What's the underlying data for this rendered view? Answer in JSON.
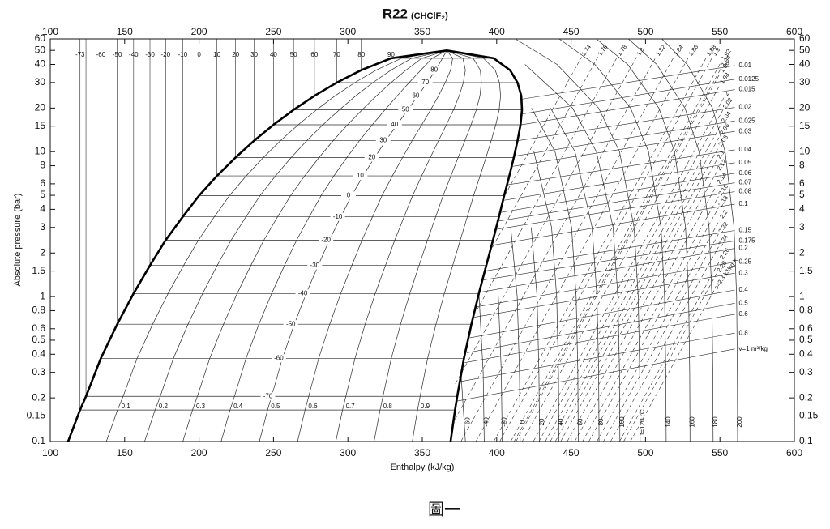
{
  "chart_data": {
    "type": "line",
    "title": "R22",
    "subtitle": "(CHClF₂)",
    "x_label": "Enthalpy (kJ/kg)",
    "y_label": "Absolute pressure (bar)",
    "caption": "圖一",
    "xlim": [
      100,
      600
    ],
    "xticks": [
      100,
      150,
      200,
      250,
      300,
      350,
      400,
      450,
      500,
      550,
      600
    ],
    "ylim": [
      0.1,
      60
    ],
    "yticks": [
      0.1,
      0.15,
      0.2,
      0.3,
      0.4,
      0.5,
      0.6,
      0.8,
      1,
      1.5,
      2,
      3,
      4,
      5,
      6,
      8,
      10,
      15,
      20,
      30,
      40,
      50,
      60
    ],
    "y_log": true,
    "dome_color": "#000000",
    "line_color": "#2a2a2a",
    "saturation": {
      "t": [
        null,
        -73,
        -70,
        -60,
        -50,
        -40,
        -30,
        -20,
        -10,
        0,
        10,
        20,
        30,
        40,
        50,
        60,
        70,
        80,
        90
      ],
      "p": [
        0.1,
        0.165,
        0.205,
        0.375,
        0.645,
        1.05,
        1.64,
        2.45,
        3.55,
        4.98,
        6.81,
        9.1,
        11.92,
        15.34,
        19.43,
        24.27,
        29.93,
        36.5,
        44.1
      ],
      "hl": [
        112,
        120,
        124,
        134,
        145,
        156,
        167,
        177.5,
        189,
        200,
        212,
        224.5,
        237,
        250,
        263.5,
        277.5,
        292.5,
        309,
        329
      ],
      "hv": [
        369,
        372,
        373.5,
        378,
        383,
        388,
        393,
        397.5,
        401.5,
        405,
        408.5,
        411.5,
        414,
        416,
        417,
        416.5,
        414,
        409,
        398
      ]
    },
    "critical": {
      "p": 49.9,
      "h": 366.5
    },
    "quality": [
      0.1,
      0.2,
      0.3,
      0.4,
      0.5,
      0.6,
      0.7,
      0.8,
      0.9
    ],
    "superheat": {
      "p": [
        0.1,
        0.3,
        1,
        3,
        10,
        20,
        40,
        60
      ],
      "isotherms": [
        {
          "t": -60,
          "h": [
            379,
            376,
            null,
            null,
            null,
            null,
            null,
            null
          ]
        },
        {
          "t": -40,
          "h": [
            391.6,
            390.9,
            388.2,
            null,
            null,
            null,
            null,
            null
          ]
        },
        {
          "t": -20,
          "h": [
            403.7,
            403.1,
            401.1,
            null,
            null,
            null,
            null,
            null
          ]
        },
        {
          "t": 0,
          "h": [
            415.8,
            415.3,
            413.8,
            409.4,
            null,
            null,
            null,
            null
          ]
        },
        {
          "t": 20,
          "h": [
            428.8,
            428.4,
            427.1,
            423.2,
            null,
            null,
            null,
            null
          ]
        },
        {
          "t": 40,
          "h": [
            441.8,
            441.5,
            440.3,
            436.9,
            425,
            null,
            null,
            null
          ]
        },
        {
          "t": 60,
          "h": [
            454.8,
            454.5,
            453.4,
            450.3,
            439.2,
            423.4,
            null,
            null
          ]
        },
        {
          "t": 80,
          "h": [
            468.8,
            468.5,
            467.4,
            464.1,
            452.6,
            436.2,
            null,
            null
          ]
        },
        {
          "t": 100,
          "h": [
            482.8,
            482.5,
            481.4,
            478.2,
            467,
            451,
            419,
            null
          ]
        },
        {
          "t": {
            "value": 120,
            "label": "t=120 °C"
          },
          "h": [
            496.4,
            496.1,
            495.1,
            492.3,
            482.5,
            468.5,
            440.5,
            412.5
          ]
        },
        {
          "t": 140,
          "h": [
            513.9,
            513.6,
            512.8,
            510.4,
            502,
            490,
            466,
            442
          ]
        },
        {
          "t": 160,
          "h": [
            529.9,
            529.7,
            529,
            526.9,
            519.5,
            509,
            488,
            467
          ]
        },
        {
          "t": 180,
          "h": [
            545.4,
            545.2,
            544.6,
            542.7,
            536,
            526.5,
            507.5,
            488.5
          ]
        },
        {
          "t": 200,
          "h": [
            561.9,
            561.7,
            561.2,
            559.5,
            553.5,
            545,
            528,
            511
          ]
        }
      ]
    },
    "isentropes": [
      {
        "s": 1.74,
        "p": [
          5,
          45
        ],
        "h": [
          405.5,
          457
        ]
      },
      {
        "s": 1.76,
        "p": [
          2,
          45
        ],
        "h": [
          395,
          468
        ]
      },
      {
        "s": 1.78,
        "p": [
          0.8,
          45
        ],
        "h": [
          386.5,
          481
        ]
      },
      {
        "s": 1.8,
        "p": [
          0.25,
          45
        ],
        "h": [
          372.2,
          494
        ]
      },
      {
        "s": 1.82,
        "p": [
          0.13,
          45
        ],
        "h": [
          369.9,
          507
        ]
      },
      {
        "s": 1.84,
        "p": [
          0.1,
          45
        ],
        "h": [
          376,
          519
        ]
      },
      {
        "s": 1.86,
        "p": [
          0.1,
          45
        ],
        "h": [
          386,
          529
        ]
      },
      {
        "s": 1.88,
        "p": [
          0.1,
          45
        ],
        "h": [
          398,
          541
        ]
      },
      {
        "s": 1.9,
        "p": [
          0.1,
          45
        ],
        "h": [
          402,
          545
        ]
      },
      {
        "s": 1.92,
        "p": [
          0.1,
          42
        ],
        "h": [
          409.4,
          551
        ]
      },
      {
        "s": 1.94,
        "p": [
          0.1,
          38
        ],
        "h": [
          411.7,
          551
        ]
      },
      {
        "s": 1.96,
        "p": [
          0.1,
          34.6
        ],
        "h": [
          412.9,
          550
        ]
      },
      {
        "s": 1.98,
        "p": [
          0.1,
          28.9
        ],
        "h": [
          417.1,
          550
        ]
      },
      {
        "s": 2,
        "p": [
          0.1,
          23.9
        ],
        "h": [
          424.6,
          553
        ]
      },
      {
        "s": 2.02,
        "p": [
          0.1,
          19.4
        ],
        "h": [
          428.4,
          552
        ]
      },
      {
        "s": 2.04,
        "p": [
          0.1,
          15.6
        ],
        "h": [
          432.6,
          551
        ]
      },
      {
        "s": 2.06,
        "p": [
          0.1,
          12.9
        ],
        "h": [
          436,
          550
        ]
      },
      {
        "s": 2.08,
        "p": [
          0.1,
          10.7
        ],
        "h": [
          439.4,
          549
        ]
      },
      {
        "s": 2.1,
        "p": [
          0.1,
          8.8
        ],
        "h": [
          443,
          548
        ]
      },
      {
        "s": 2.12,
        "p": [
          0.1,
          7.3
        ],
        "h": [
          447.4,
          548
        ]
      },
      {
        "s": 2.14,
        "p": [
          0.1,
          5.9
        ],
        "h": [
          452.4,
          548
        ]
      },
      {
        "s": 2.16,
        "p": [
          0.1,
          4.9
        ],
        "h": [
          457.7,
          549
        ]
      },
      {
        "s": 2.18,
        "p": [
          0.1,
          4.1
        ],
        "h": [
          461.9,
          549
        ]
      },
      {
        "s": 2.2,
        "p": [
          0.1,
          3.4
        ],
        "h": [
          467.3,
          550
        ]
      },
      {
        "s": 2.22,
        "p": [
          0.1,
          2.7
        ],
        "h": [
          471.7,
          549
        ]
      },
      {
        "s": 2.24,
        "p": [
          0.1,
          2.2
        ],
        "h": [
          476.5,
          549
        ]
      },
      {
        "s": 2.26,
        "p": [
          0.1,
          1.78
        ],
        "h": [
          482.5,
          550
        ]
      },
      {
        "s": 2.28,
        "p": [
          0.1,
          1.45
        ],
        "h": [
          485.3,
          548
        ]
      },
      {
        "s": {
          "value": 2.3,
          "label": "s=2.3 kJ/kg K"
        },
        "p": [
          0.1,
          1.1
        ],
        "h": [
          489.8,
          546
        ]
      }
    ],
    "isochores": [
      {
        "v": 0.01,
        "p": [
          23,
          39.3
        ],
        "h": [
          416.5,
          560
        ]
      },
      {
        "v": 0.0125,
        "p": [
          18.2,
          31.6
        ],
        "h": [
          417,
          560
        ]
      },
      {
        "v": 0.015,
        "p": [
          15.3,
          26.8
        ],
        "h": [
          416,
          560
        ]
      },
      {
        "v": 0.02,
        "p": [
          11.9,
          20.2
        ],
        "h": [
          414,
          560
        ]
      },
      {
        "v": 0.025,
        "p": [
          9.3,
          16.3
        ],
        "h": [
          411.7,
          560
        ]
      },
      {
        "v": 0.03,
        "p": [
          7.9,
          13.8
        ],
        "h": [
          410,
          560
        ]
      },
      {
        "v": 0.04,
        "p": [
          5.9,
          10.3
        ],
        "h": [
          407,
          560
        ]
      },
      {
        "v": 0.05,
        "p": [
          4.6,
          8.4
        ],
        "h": [
          404,
          560
        ]
      },
      {
        "v": 0.06,
        "p": [
          3.8,
          7.1
        ],
        "h": [
          402,
          560
        ]
      },
      {
        "v": 0.07,
        "p": [
          3.3,
          6.1
        ],
        "h": [
          400,
          560
        ]
      },
      {
        "v": 0.08,
        "p": [
          2.9,
          5.3
        ],
        "h": [
          398.5,
          560
        ]
      },
      {
        "v": 0.1,
        "p": [
          2.25,
          4.35
        ],
        "h": [
          396,
          560
        ]
      },
      {
        "v": 0.15,
        "p": [
          1.5,
          2.86
        ],
        "h": [
          392,
          560
        ]
      },
      {
        "v": 0.175,
        "p": [
          1.3,
          2.42
        ],
        "h": [
          390.5,
          560
        ]
      },
      {
        "v": 0.2,
        "p": [
          1.07,
          2.15
        ],
        "h": [
          388.5,
          560
        ]
      },
      {
        "v": 0.25,
        "p": [
          0.85,
          1.73
        ],
        "h": [
          386.5,
          560
        ]
      },
      {
        "v": 0.3,
        "p": [
          0.72,
          1.45
        ],
        "h": [
          385,
          560
        ]
      },
      {
        "v": 0.4,
        "p": [
          0.52,
          1.11
        ],
        "h": [
          382,
          560
        ]
      },
      {
        "v": 0.5,
        "p": [
          0.41,
          0.9
        ],
        "h": [
          380,
          560
        ]
      },
      {
        "v": 0.6,
        "p": [
          0.35,
          0.755
        ],
        "h": [
          378.5,
          560
        ]
      },
      {
        "v": 0.8,
        "p": [
          0.26,
          0.56
        ],
        "h": [
          376,
          560
        ]
      },
      {
        "v": {
          "value": 1,
          "label": "v=1 m³/kg"
        },
        "p": [
          0.19,
          0.435
        ],
        "h": [
          373.5,
          560
        ]
      }
    ]
  }
}
